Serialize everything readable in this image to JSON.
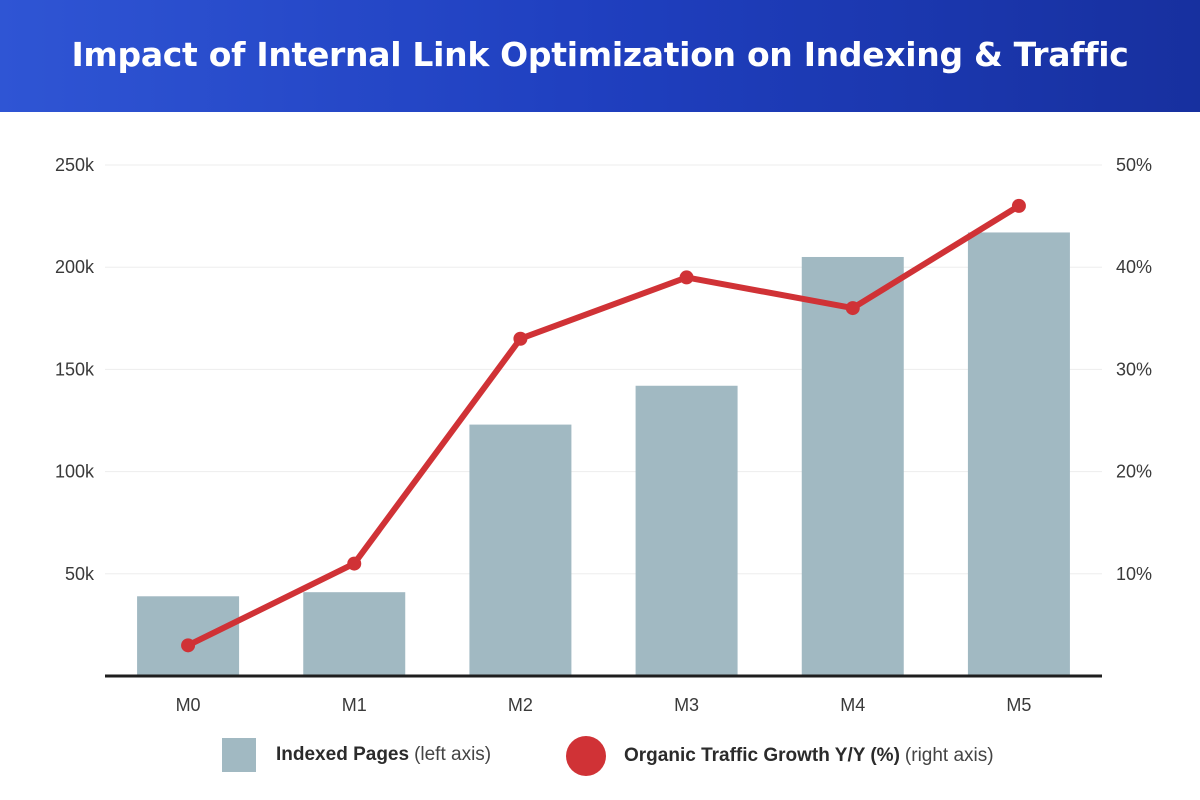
{
  "header": {
    "title": "Impact of Internal Link Optimization on Indexing & Traffic"
  },
  "chart_data": {
    "type": "bar",
    "title": "Impact of Internal Link Optimization on Indexing & Traffic",
    "categories": [
      "M0",
      "M1",
      "M2",
      "M3",
      "M4",
      "M5"
    ],
    "series": [
      {
        "name": "Indexed Pages",
        "type": "bar",
        "axis": "left",
        "values": [
          39000,
          41000,
          123000,
          142000,
          205000,
          217000
        ],
        "color": "#a1b9c2"
      },
      {
        "name": "Organic Traffic Growth Y/Y (%)",
        "type": "line",
        "axis": "right",
        "values": [
          3,
          11,
          33,
          39,
          36,
          46
        ],
        "color": "#d03236"
      }
    ],
    "y_left": {
      "min": 0,
      "max": 250000,
      "ticks": [
        50000,
        100000,
        150000,
        200000,
        250000
      ],
      "tick_labels": [
        "50k",
        "100k",
        "150k",
        "200k",
        "250k"
      ]
    },
    "y_right": {
      "min": 0,
      "max": 50,
      "ticks": [
        10,
        20,
        30,
        40,
        50
      ],
      "tick_labels": [
        "10%",
        "20%",
        "30%",
        "40%",
        "50%"
      ]
    },
    "grid": true,
    "legend_position": "bottom"
  },
  "legend": {
    "items": [
      {
        "bold": "Indexed Pages",
        "plain": "(left axis)",
        "color": "#a1b9c2"
      },
      {
        "bold": "Organic Traffic Growth Y/Y (%)",
        "plain": "(right axis)",
        "color": "#d03236"
      }
    ]
  }
}
